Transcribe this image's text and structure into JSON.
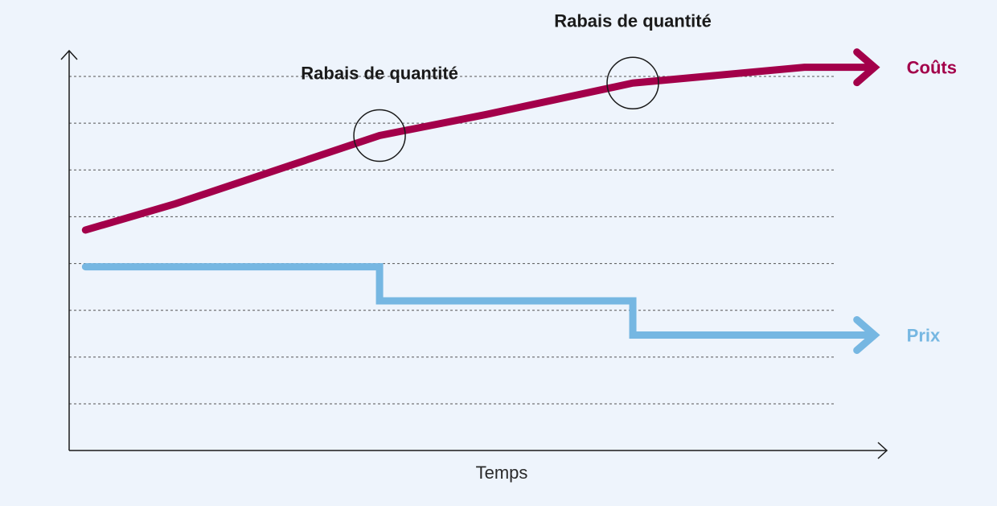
{
  "chart_data": {
    "type": "line",
    "title": "",
    "xlabel": "Temps",
    "ylabel": "",
    "grid": true,
    "x_ticks_labeled": false,
    "y_ticks_labeled": false,
    "xlim": [
      0,
      10
    ],
    "ylim": [
      0,
      8
    ],
    "series": [
      {
        "name": "Coûts",
        "color": "#a3004a",
        "x": [
          0.2,
          1.3,
          3.8,
          5.1,
          6.9,
          9.0,
          9.8
        ],
        "y": [
          4.2,
          4.7,
          6.0,
          6.4,
          7.0,
          7.3,
          7.3
        ]
      },
      {
        "name": "Prix",
        "color": "#76b7e2",
        "x": [
          0.2,
          3.8,
          3.8,
          6.9,
          6.9,
          9.8
        ],
        "y": [
          3.5,
          3.5,
          2.85,
          2.85,
          2.2,
          2.2
        ]
      }
    ],
    "annotations": [
      {
        "text": "Rabais de quantité",
        "x": 3.8,
        "y": 6.0
      },
      {
        "text": "Rabais de quantité",
        "x": 6.9,
        "y": 7.0
      }
    ]
  }
}
